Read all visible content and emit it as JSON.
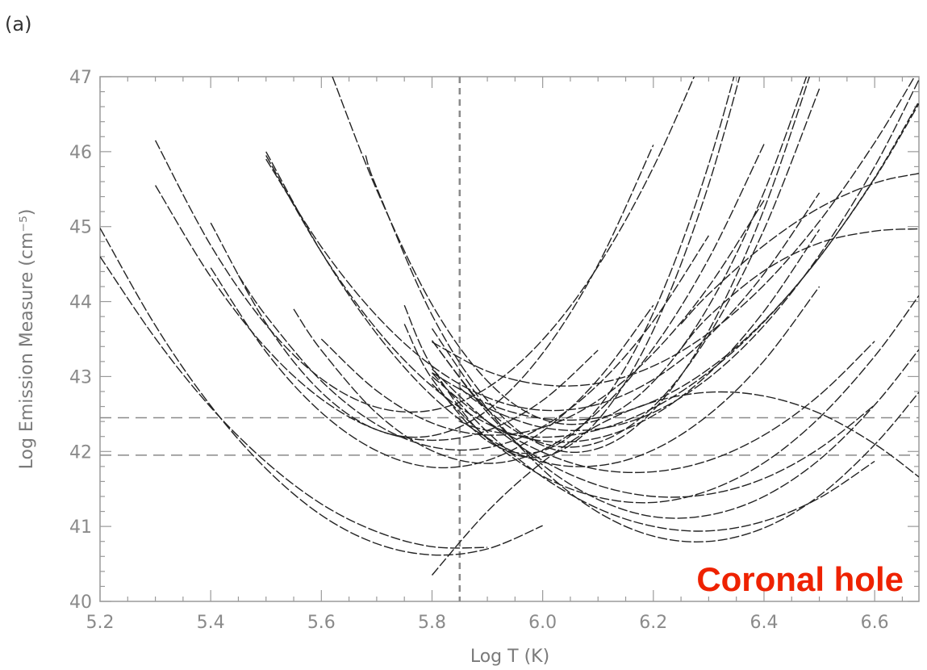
{
  "panel_label": "(a)",
  "annotation": {
    "text": "Coronal hole",
    "color": "#ee2200"
  },
  "colors": {
    "curve": "#222222",
    "frame": "#9a9a9a",
    "reference": "#8a8a8a",
    "tick_text": "#8a8a8a"
  },
  "chart_data": {
    "type": "line",
    "title": "",
    "xlabel": "Log T (K)",
    "ylabel": "Log Emission Measure (cm⁻⁵)",
    "xlim": [
      5.2,
      6.68
    ],
    "ylim": [
      40,
      47
    ],
    "xticks": [
      5.2,
      5.4,
      5.6,
      5.8,
      6.0,
      6.2,
      6.4,
      6.6
    ],
    "xtick_labels": [
      "5.2",
      "5.4",
      "5.6",
      "5.8",
      "6.0",
      "6.2",
      "6.4",
      "6.6"
    ],
    "yticks": [
      40,
      41,
      42,
      43,
      44,
      45,
      46,
      47
    ],
    "ytick_labels": [
      "40",
      "41",
      "42",
      "43",
      "44",
      "45",
      "46",
      "47"
    ],
    "grid": false,
    "legend": "none",
    "reference_lines": {
      "vertical_x": 5.85,
      "horizontal_y": [
        42.45,
        41.95
      ]
    },
    "line_style": "dashed",
    "series": [
      {
        "x": [
          5.2,
          5.3,
          5.4,
          5.5,
          5.6,
          5.7,
          5.8,
          5.9,
          6.0
        ],
        "y": [
          44.98,
          43.68,
          42.61,
          41.77,
          41.15,
          40.77,
          40.62,
          40.7,
          41.01
        ]
      },
      {
        "x": [
          5.2,
          5.3,
          5.4,
          5.5,
          5.6,
          5.7,
          5.8,
          5.9
        ],
        "y": [
          44.6,
          43.51,
          42.59,
          41.86,
          41.3,
          40.93,
          40.73,
          40.72
        ]
      },
      {
        "x": [
          5.3,
          5.4,
          5.5,
          5.6,
          5.7,
          5.8,
          5.9,
          6.0,
          6.1,
          6.2,
          6.3
        ],
        "y": [
          46.15,
          44.75,
          43.69,
          42.97,
          42.59,
          42.55,
          42.85,
          43.49,
          44.47,
          45.79,
          47.45
        ]
      },
      {
        "x": [
          5.3,
          5.4,
          5.5,
          5.6,
          5.7,
          5.8,
          5.9,
          6.0,
          6.1
        ],
        "y": [
          45.55,
          44.33,
          43.38,
          42.7,
          42.29,
          42.15,
          42.28,
          42.68,
          43.35
        ]
      },
      {
        "x": [
          5.4,
          5.5,
          5.6,
          5.7,
          5.8,
          5.9,
          6.0,
          6.1,
          6.2
        ],
        "y": [
          45.05,
          43.71,
          42.79,
          42.29,
          42.21,
          42.55,
          43.31,
          44.49,
          46.09
        ]
      },
      {
        "x": [
          5.4,
          5.5,
          5.6,
          5.7,
          5.8,
          5.9,
          6.0,
          6.1,
          6.2
        ],
        "y": [
          44.45,
          43.33,
          42.52,
          42.01,
          41.79,
          41.88,
          42.27,
          42.96,
          43.95
        ]
      },
      {
        "x": [
          5.45,
          5.5,
          5.6,
          5.7,
          5.8,
          5.9,
          6.0,
          6.1,
          6.2,
          6.3
        ],
        "y": [
          44.35,
          43.81,
          42.94,
          42.36,
          42.06,
          42.05,
          42.33,
          42.89,
          43.74,
          44.88
        ]
      },
      {
        "x": [
          5.5,
          5.6,
          5.7,
          5.8,
          5.9,
          6.0,
          6.1,
          6.2,
          6.3,
          6.4,
          6.5
        ],
        "y": [
          46.0,
          44.66,
          43.57,
          42.74,
          42.18,
          41.86,
          41.81,
          42.02,
          42.49,
          43.21,
          44.2
        ]
      },
      {
        "x": [
          5.5,
          5.6,
          5.7,
          5.8,
          5.9,
          6.0,
          6.1,
          6.2,
          6.3,
          6.4,
          6.5
        ],
        "y": [
          45.95,
          44.66,
          43.63,
          42.87,
          42.37,
          42.14,
          42.18,
          42.48,
          43.04,
          43.87,
          44.96
        ]
      },
      {
        "x": [
          5.5,
          5.6,
          5.7,
          5.8,
          5.9,
          6.0,
          6.1,
          6.2,
          6.3,
          6.4,
          6.5
        ],
        "y": [
          45.9,
          44.73,
          43.81,
          43.14,
          42.72,
          42.55,
          42.63,
          42.96,
          43.54,
          44.37,
          45.45
        ]
      },
      {
        "x": [
          5.55,
          5.6,
          5.7,
          5.8,
          5.9,
          6.0,
          6.1,
          6.2,
          6.3,
          6.4
        ],
        "y": [
          43.9,
          43.35,
          42.51,
          42.01,
          41.84,
          42.02,
          42.53,
          43.38,
          44.57,
          46.1
        ]
      },
      {
        "x": [
          5.6,
          5.7,
          5.8,
          5.9,
          6.0,
          6.1,
          6.2,
          6.3,
          6.4
        ],
        "y": [
          43.5,
          42.81,
          42.38,
          42.22,
          42.32,
          42.68,
          43.31,
          44.2,
          45.35
        ]
      },
      {
        "x": [
          5.62,
          5.7,
          5.8,
          5.9,
          6.0,
          6.1,
          6.2,
          6.3,
          6.4,
          6.5
        ],
        "y": [
          47.0,
          45.49,
          43.96,
          42.94,
          42.43,
          42.42,
          42.93,
          43.94,
          45.46,
          47.49
        ]
      },
      {
        "x": [
          5.68,
          5.7,
          5.8,
          5.9,
          6.0,
          6.1,
          6.2,
          6.3,
          6.4,
          6.5
        ],
        "y": [
          45.95,
          45.52,
          43.82,
          42.68,
          42.08,
          42.04,
          42.55,
          43.61,
          45.23,
          47.4
        ]
      },
      {
        "x": [
          5.75,
          5.8,
          5.9,
          6.0,
          6.1,
          6.2,
          6.3,
          6.4
        ],
        "y": [
          43.7,
          42.97,
          42.14,
          42.01,
          42.58,
          43.85,
          45.83,
          48.5
        ]
      },
      {
        "x": [
          5.75,
          5.8,
          5.9,
          6.0,
          6.1,
          6.2,
          6.3,
          6.4
        ],
        "y": [
          43.95,
          43.13,
          42.17,
          41.93,
          42.42,
          43.62,
          45.56,
          48.21
        ]
      },
      {
        "x": [
          5.8,
          5.9,
          6.0,
          6.1,
          6.2,
          6.3,
          6.4,
          6.5,
          6.6,
          6.68
        ],
        "y": [
          40.35,
          41.2,
          41.86,
          42.35,
          42.66,
          42.79,
          42.74,
          42.51,
          42.1,
          41.66
        ]
      },
      {
        "x": [
          5.8,
          5.9,
          6.0,
          6.1,
          6.2,
          6.3,
          6.4,
          6.5,
          6.6,
          6.68
        ],
        "y": [
          43.46,
          43.07,
          42.89,
          42.91,
          43.14,
          43.58,
          44.22,
          45.07,
          46.12,
          47.1
        ]
      },
      {
        "x": [
          5.8,
          5.9,
          6.0,
          6.1,
          6.2,
          6.3,
          6.4,
          6.5
        ],
        "y": [
          43.48,
          42.56,
          42.11,
          42.12,
          42.6,
          43.55,
          44.96,
          46.84
        ]
      },
      {
        "x": [
          5.8,
          5.9,
          6.0,
          6.1,
          6.2,
          6.3,
          6.4,
          6.5,
          6.6,
          6.68
        ],
        "y": [
          43.05,
          42.64,
          42.44,
          42.45,
          42.67,
          43.1,
          43.74,
          44.59,
          45.65,
          46.67
        ]
      },
      {
        "x": [
          5.85,
          5.9,
          6.0,
          6.1,
          6.2,
          6.3,
          6.4,
          6.5,
          6.6,
          6.68
        ],
        "y": [
          42.85,
          42.58,
          42.32,
          42.3,
          42.52,
          42.98,
          43.68,
          44.62,
          45.8,
          46.96
        ]
      },
      {
        "x": [
          5.85,
          5.9,
          6.0,
          6.1,
          6.2,
          6.3,
          6.4,
          6.5,
          6.6,
          6.68
        ],
        "y": [
          42.4,
          42.28,
          42.19,
          42.29,
          42.58,
          43.06,
          43.73,
          44.59,
          45.64,
          46.64
        ]
      },
      {
        "x": [
          5.8,
          5.9,
          6.0,
          6.1,
          6.2,
          6.3,
          6.4,
          6.5,
          6.6
        ],
        "y": [
          43.0,
          42.4,
          41.99,
          41.76,
          41.73,
          41.88,
          42.22,
          42.75,
          43.47
        ]
      },
      {
        "x": [
          5.8,
          5.9,
          6.0,
          6.1,
          6.2,
          6.3,
          6.4,
          6.5,
          6.6
        ],
        "y": [
          43.1,
          42.4,
          41.88,
          41.55,
          41.4,
          41.43,
          41.64,
          42.04,
          42.62
        ]
      },
      {
        "x": [
          5.8,
          5.9,
          6.0,
          6.1,
          6.2,
          6.3,
          6.4,
          6.5,
          6.6
        ],
        "y": [
          43.05,
          42.26,
          41.66,
          41.24,
          41.0,
          40.94,
          41.07,
          41.38,
          41.87
        ]
      },
      {
        "x": [
          5.8,
          5.9,
          6.0,
          6.1,
          6.2,
          6.3,
          6.4,
          6.5,
          6.6,
          6.68
        ],
        "y": [
          43.48,
          42.52,
          41.82,
          41.36,
          41.13,
          41.15,
          41.4,
          41.89,
          42.62,
          43.36
        ]
      },
      {
        "x": [
          5.8,
          5.9,
          6.0,
          6.1,
          6.2,
          6.3,
          6.4,
          6.5,
          6.6,
          6.68
        ],
        "y": [
          43.64,
          42.57,
          41.76,
          41.19,
          40.87,
          40.8,
          40.98,
          41.41,
          42.09,
          42.79
        ]
      },
      {
        "x": [
          5.8,
          5.9,
          6.0,
          6.1,
          6.2,
          6.3,
          6.4,
          6.5,
          6.6,
          6.68
        ],
        "y": [
          42.9,
          42.18,
          41.67,
          41.39,
          41.32,
          41.48,
          41.85,
          42.45,
          43.27,
          44.08
        ]
      },
      {
        "x": [
          6.25,
          6.3,
          6.4,
          6.5,
          6.6,
          6.68
        ],
        "y": [
          43.37,
          43.8,
          44.41,
          44.78,
          44.94,
          44.97
        ]
      },
      {
        "x": [
          6.25,
          6.3,
          6.4,
          6.5,
          6.6,
          6.68
        ],
        "y": [
          43.7,
          44.1,
          44.75,
          45.25,
          45.58,
          45.71
        ]
      }
    ]
  }
}
